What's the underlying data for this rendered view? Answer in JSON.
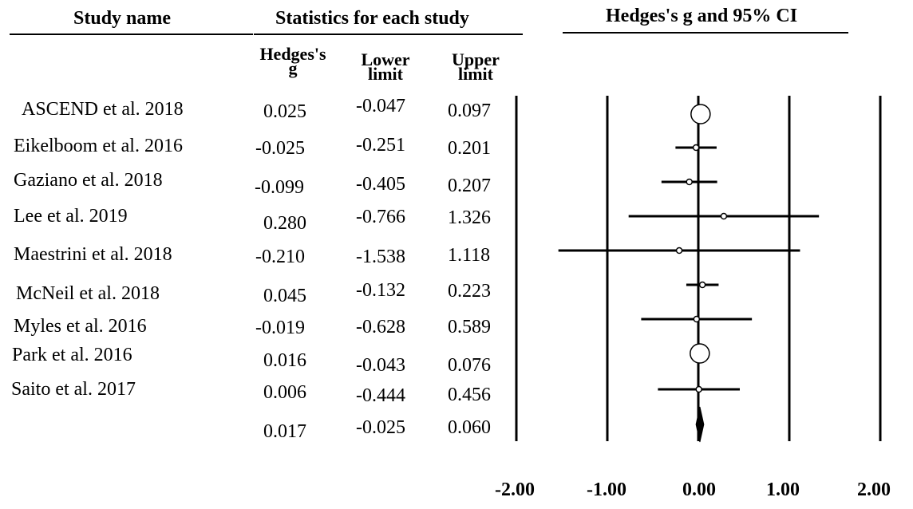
{
  "headers": {
    "study_name": "Study name",
    "statistics": "Statistics for each study",
    "ci": "Hedges's g and 95% CI",
    "col_g_1": "Hedges's",
    "col_g_2": "g",
    "col_lower_1": "Lower",
    "col_lower_2": "limit",
    "col_upper_1": "Upper",
    "col_upper_2": "limit"
  },
  "studies": [
    {
      "name": "ASCEND et al. 2018",
      "g": "0.025",
      "lower": "-0.047",
      "upper": "0.097"
    },
    {
      "name": "Eikelboom et al. 2016",
      "g": "-0.025",
      "lower": "-0.251",
      "upper": "0.201"
    },
    {
      "name": "Gaziano et al. 2018",
      "g": "-0.099",
      "lower": "-0.405",
      "upper": "0.207"
    },
    {
      "name": "Lee et al. 2019",
      "g": "0.280",
      "lower": "-0.766",
      "upper": "1.326"
    },
    {
      "name": "Maestrini et al. 2018",
      "g": "-0.210",
      "lower": "-1.538",
      "upper": "1.118"
    },
    {
      "name": "McNeil et al. 2018",
      "g": "0.045",
      "lower": "-0.132",
      "upper": "0.223"
    },
    {
      "name": "Myles et al. 2016",
      "g": "-0.019",
      "lower": "-0.628",
      "upper": "0.589"
    },
    {
      "name": "Park et al. 2016",
      "g": "0.016",
      "lower": "-0.043",
      "upper": "0.076"
    },
    {
      "name": "Saito et al. 2017",
      "g": "0.006",
      "lower": "-0.444",
      "upper": "0.456"
    }
  ],
  "pooled": {
    "name": "",
    "g": "0.017",
    "lower": "-0.025",
    "upper": "0.060"
  },
  "axis": {
    "ticks": [
      "-2.00",
      "-1.00",
      "0.00",
      "1.00",
      "2.00"
    ]
  },
  "chart_data": {
    "type": "forest",
    "xlim": [
      -2,
      2
    ],
    "x_ticks": [
      -2,
      -1,
      0,
      1,
      2
    ],
    "categories": [
      "ASCEND et al. 2018",
      "Eikelboom et al. 2016",
      "Gaziano et al. 2018",
      "Lee et al. 2019",
      "Maestrini et al. 2018",
      "McNeil et al. 2018",
      "Myles et al. 2016",
      "Park et al. 2016",
      "Saito et al. 2017"
    ],
    "effect": [
      0.025,
      -0.025,
      -0.099,
      0.28,
      -0.21,
      0.045,
      -0.019,
      0.016,
      0.006
    ],
    "lower": [
      -0.047,
      -0.251,
      -0.405,
      -0.766,
      -1.538,
      -0.132,
      -0.628,
      -0.043,
      -0.444
    ],
    "upper": [
      0.097,
      0.201,
      0.207,
      1.326,
      1.118,
      0.223,
      0.589,
      0.076,
      0.456
    ],
    "marker_size": [
      "large",
      "small",
      "small",
      "small",
      "small",
      "small",
      "small",
      "large",
      "small"
    ],
    "pooled": {
      "effect": 0.017,
      "lower": -0.025,
      "upper": 0.06
    }
  }
}
